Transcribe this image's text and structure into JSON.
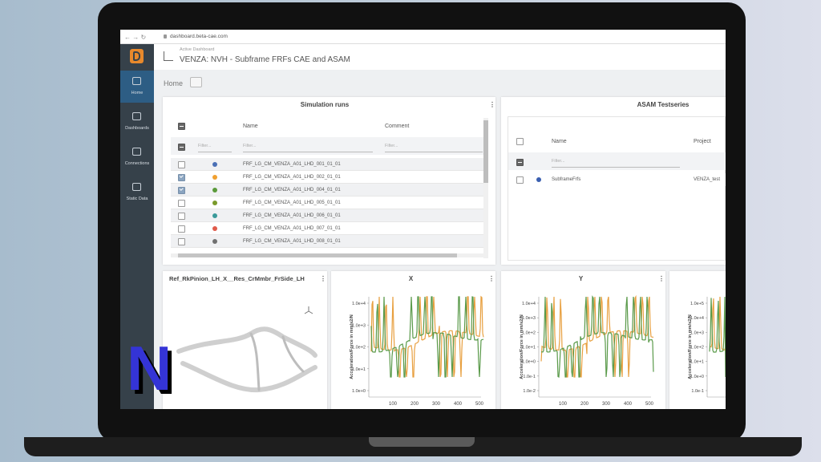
{
  "browser": {
    "url": "dashboard.beta-cae.com"
  },
  "header": {
    "subtitle": "Active Dashboard",
    "title": "VENZA: NVH - Subframe FRFs CAE and ASAM"
  },
  "sidebar": [
    {
      "label": "Home",
      "active": true
    },
    {
      "label": "Dashboards",
      "active": false
    },
    {
      "label": "Connections",
      "active": false
    },
    {
      "label": "Static Data",
      "active": false
    }
  ],
  "breadcrumb": "Home",
  "simulation_runs": {
    "title": "Simulation runs",
    "columns": [
      "Name",
      "Comment"
    ],
    "filter_placeholder": "Filter...",
    "rows": [
      {
        "name": "FRF_LG_CM_VENZA_A01_LHD_001_01_01",
        "color": "#4a6fb5",
        "checked": false
      },
      {
        "name": "FRF_LG_CM_VENZA_A01_LHD_002_01_01",
        "color": "#f0a030",
        "checked": true
      },
      {
        "name": "FRF_LG_CM_VENZA_A01_LHD_004_01_01",
        "color": "#5a9a3a",
        "checked": true
      },
      {
        "name": "FRF_LG_CM_VENZA_A01_LHD_005_01_01",
        "color": "#7a9a2a",
        "checked": false
      },
      {
        "name": "FRF_LG_CM_VENZA_A01_LHD_006_01_01",
        "color": "#3a9a9a",
        "checked": false
      },
      {
        "name": "FRF_LG_CM_VENZA_A01_LHD_007_01_01",
        "color": "#e05a4a",
        "checked": false
      },
      {
        "name": "FRF_LG_CM_VENZA_A01_LHD_008_01_01",
        "color": "#707070",
        "checked": false
      }
    ]
  },
  "asam": {
    "title": "ASAM Testseries",
    "columns": [
      "Name",
      "Project"
    ],
    "filter_placeholder": "Filter...",
    "rows": [
      {
        "name": "SubframeFrfs",
        "project": "VENZA_test",
        "color": "#3a5fb0"
      }
    ]
  },
  "panels": [
    {
      "title": "Ref_RkPinion_LH_X__Res_CrMmbr_FrSide_LH"
    },
    {
      "title": "X",
      "y_axis_label": "Acceleration/Force in mm/s2/N",
      "yticks": [
        "1.0e+4",
        "1.0e+3",
        "1.0e+2",
        "1.0e+1",
        "1.0e+0"
      ],
      "xticks": [
        "100",
        "200",
        "300",
        "400",
        "500"
      ]
    },
    {
      "title": "Y",
      "y_axis_label": "Acceleration/Force in mm/s2/N",
      "yticks": [
        "1.0e+4",
        "1.0e+3",
        "1.0e+2",
        "1.0e+1",
        "1.0e+0",
        "1.0e-1",
        "1.0e-2"
      ],
      "xticks": [
        "100",
        "200",
        "300",
        "400",
        "500"
      ]
    },
    {
      "y_axis_label": "Acceleration/Force in mm/s2/N",
      "yticks": [
        "1.0e+5",
        "1.0e+4",
        "1.0e+3",
        "1.0e+2",
        "1.0e+1",
        "1.0e+0",
        "1.0e-1"
      ]
    }
  ],
  "watermark": "N"
}
